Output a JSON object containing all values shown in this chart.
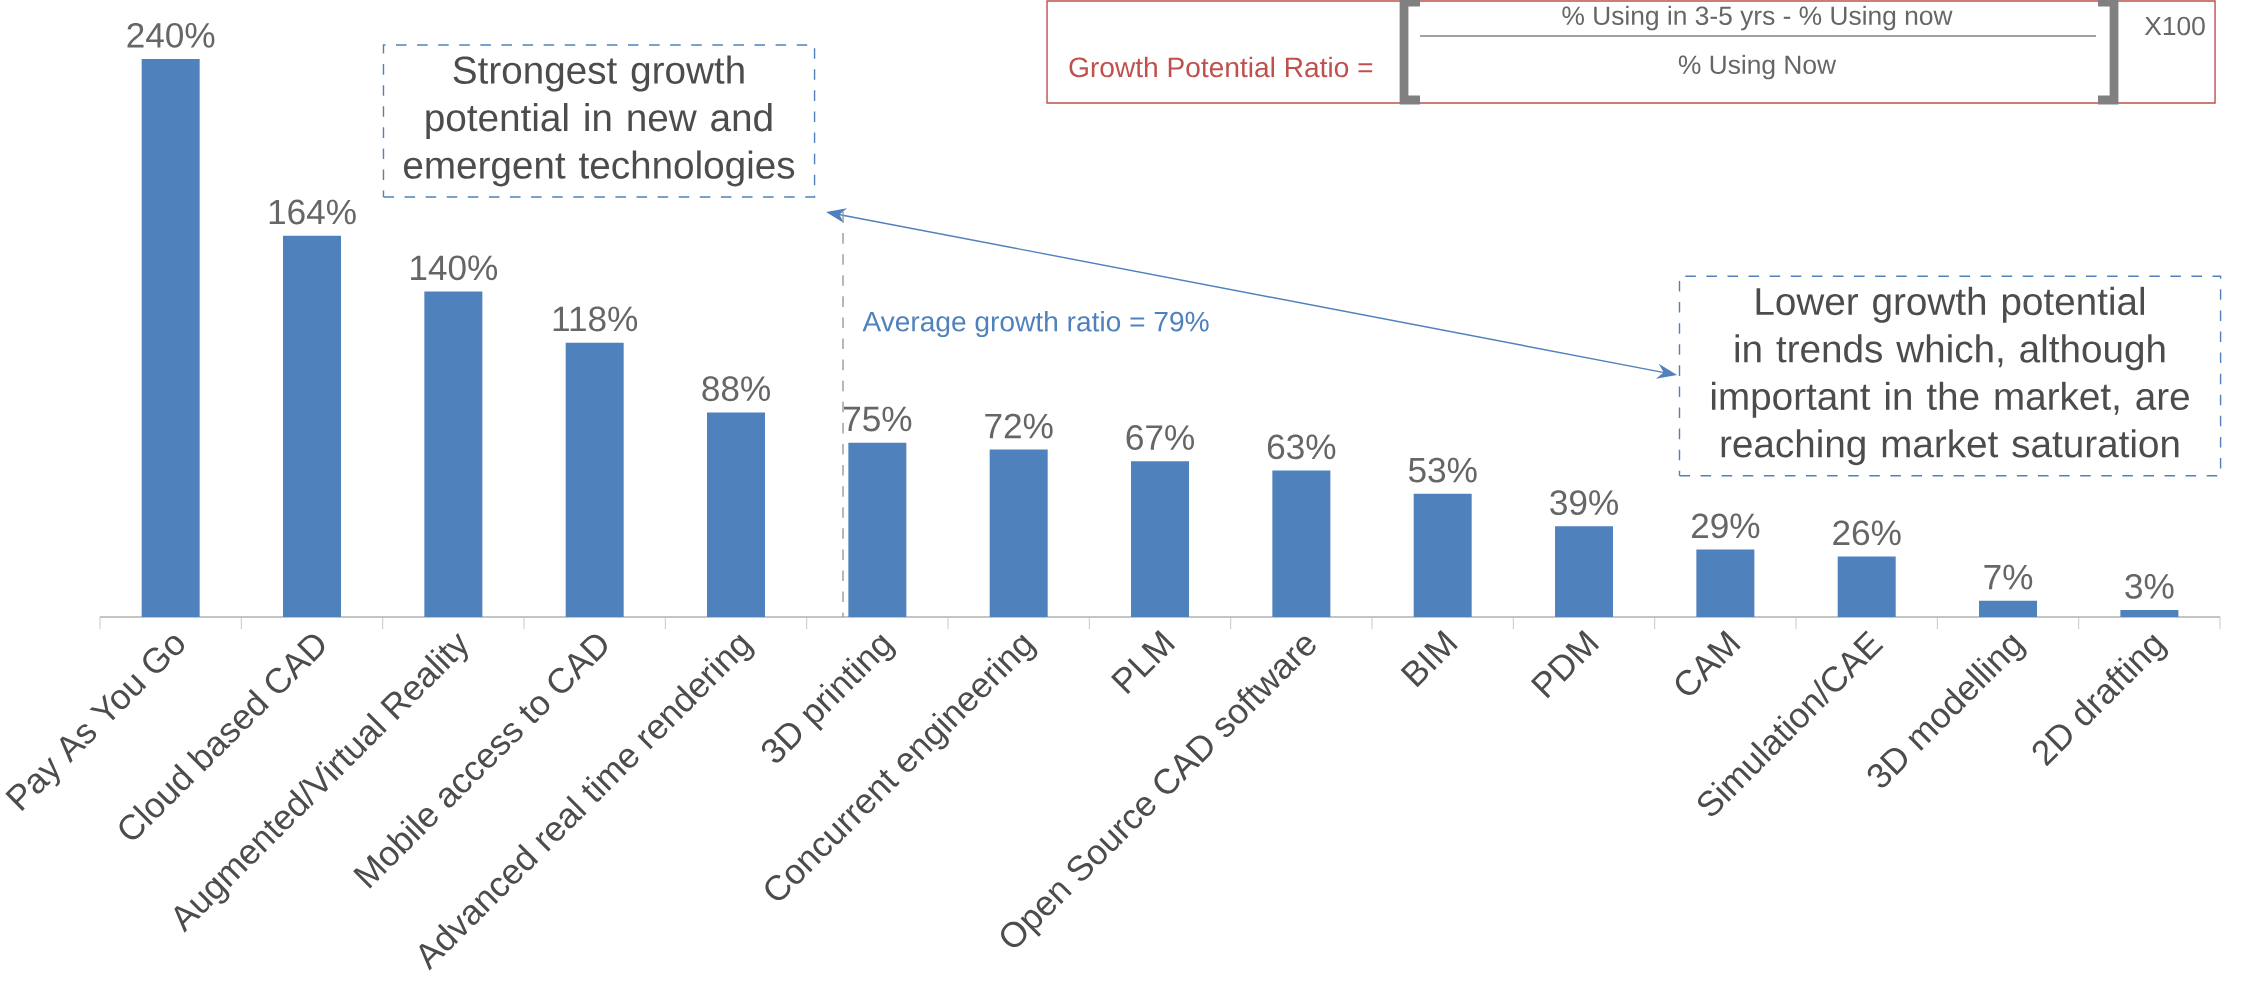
{
  "chart_data": {
    "type": "bar",
    "categories": [
      "Pay As You Go",
      "Cloud based CAD",
      "Augmented/Virtual Reality",
      "Mobile access to CAD",
      "Advanced real time rendering",
      "3D printing",
      "Concurrent engineering",
      "PLM",
      "Open Source CAD software",
      "BIM",
      "PDM",
      "CAM",
      "Simulation/CAE",
      "3D modelling",
      "2D drafting"
    ],
    "values": [
      240,
      164,
      140,
      118,
      88,
      75,
      72,
      67,
      63,
      53,
      39,
      29,
      26,
      7,
      3
    ],
    "value_labels": [
      "240%",
      "164%",
      "140%",
      "118%",
      "88%",
      "75%",
      "72%",
      "67%",
      "63%",
      "53%",
      "39%",
      "29%",
      "26%",
      "7%",
      "3%"
    ],
    "color": "#4f81bd",
    "annotations": [
      "Strongest growth potential in new and emergent technologies",
      "Lower growth potential in trends which, although important in the market, are reaching market saturation",
      "Growth Potential Ratio =",
      "% Using in 3-5 yrs - % Using now",
      "% Using Now",
      "X100",
      "Average growth ratio = 79%"
    ]
  }
}
